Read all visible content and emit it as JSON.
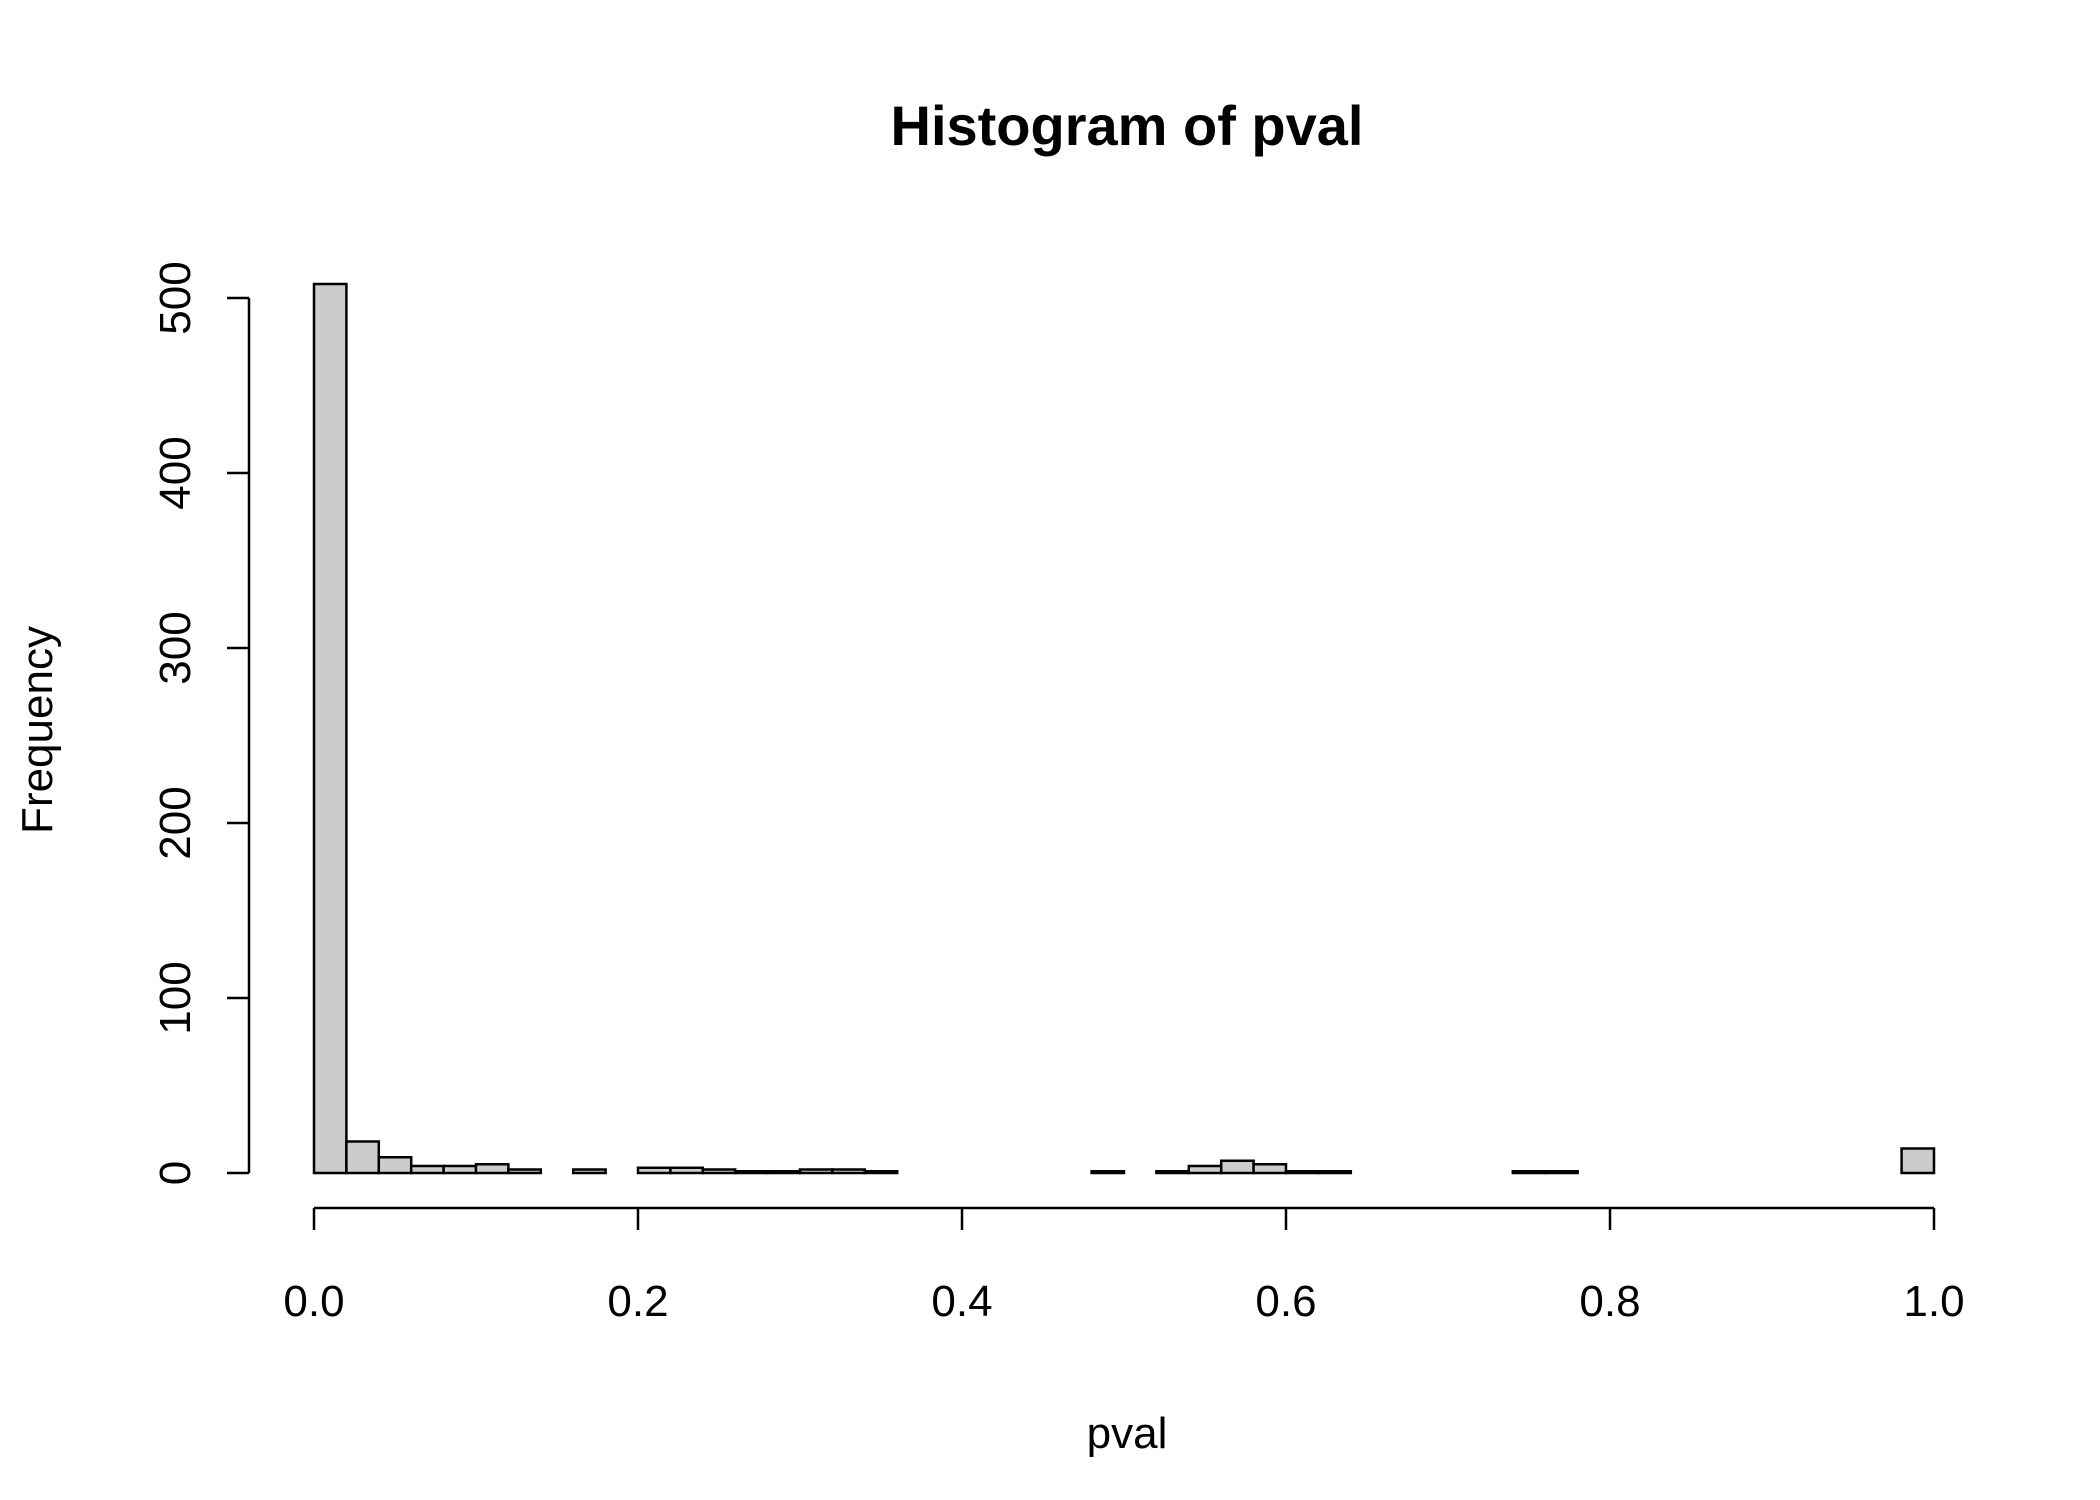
{
  "chart_data": {
    "type": "bar",
    "title": "Histogram of pval",
    "xlabel": "pval",
    "ylabel": "Frequency",
    "xlim": [
      0,
      1
    ],
    "ylim": [
      0,
      500
    ],
    "x_ticks": [
      0.0,
      0.2,
      0.4,
      0.6,
      0.8,
      1.0
    ],
    "x_tick_labels": [
      "0.0",
      "0.2",
      "0.4",
      "0.6",
      "0.8",
      "1.0"
    ],
    "y_ticks": [
      0,
      100,
      200,
      300,
      400,
      500
    ],
    "y_tick_labels": [
      "0",
      "100",
      "200",
      "300",
      "400",
      "500"
    ],
    "bin_width": 0.02,
    "bin_starts": [
      0.0,
      0.02,
      0.04,
      0.06,
      0.08,
      0.1,
      0.12,
      0.14,
      0.16,
      0.18,
      0.2,
      0.22,
      0.24,
      0.26,
      0.28,
      0.3,
      0.32,
      0.34,
      0.36,
      0.38,
      0.4,
      0.42,
      0.44,
      0.46,
      0.48,
      0.5,
      0.52,
      0.54,
      0.56,
      0.58,
      0.6,
      0.62,
      0.64,
      0.66,
      0.68,
      0.7,
      0.72,
      0.74,
      0.76,
      0.78,
      0.8,
      0.82,
      0.84,
      0.86,
      0.88,
      0.9,
      0.92,
      0.94,
      0.96,
      0.98
    ],
    "values": [
      508,
      18,
      9,
      4,
      4,
      5,
      2,
      0,
      2,
      0,
      3,
      3,
      2,
      1,
      1,
      2,
      2,
      1,
      0,
      0,
      0,
      0,
      0,
      0,
      1,
      0,
      1,
      4,
      7,
      5,
      1,
      1,
      0,
      0,
      0,
      0,
      0,
      1,
      1,
      0,
      0,
      0,
      0,
      0,
      0,
      0,
      0,
      0,
      0,
      14
    ],
    "colors": {
      "bar_fill": "#cccccc",
      "bar_stroke": "#000000"
    },
    "grid": false,
    "legend": "none"
  }
}
